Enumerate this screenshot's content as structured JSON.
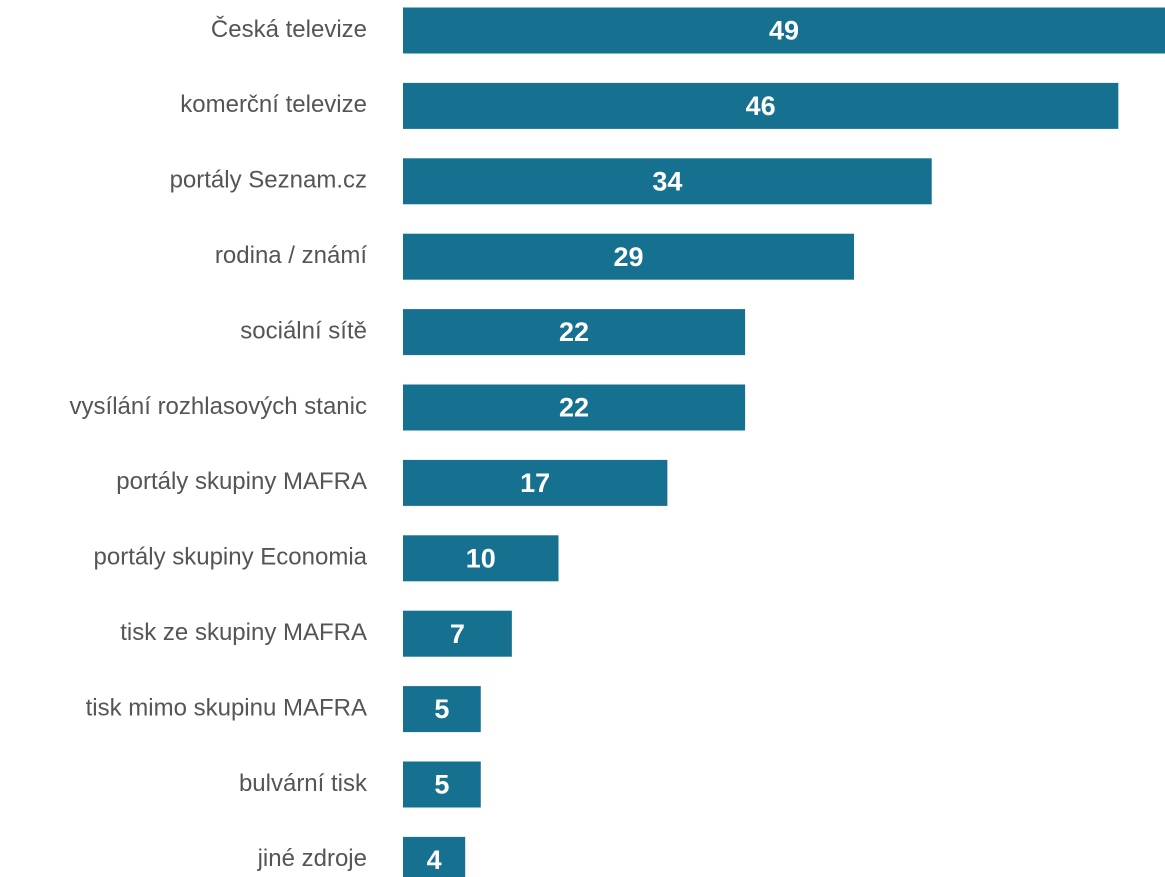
{
  "chart_data": {
    "type": "bar",
    "orientation": "horizontal",
    "categories": [
      "Česká televize",
      "komerční televize",
      "portály Seznam.cz",
      "rodina / známí",
      "sociální sítě",
      "vysílání rozhlasových stanic",
      "portály skupiny MAFRA",
      "portály skupiny Economia",
      "tisk ze skupiny MAFRA",
      "tisk mimo skupinu MAFRA",
      "bulvární tisk",
      "jiné zdroje"
    ],
    "values": [
      49,
      46,
      34,
      29,
      22,
      22,
      17,
      10,
      7,
      5,
      5,
      4
    ],
    "color": "#16708f"
  }
}
